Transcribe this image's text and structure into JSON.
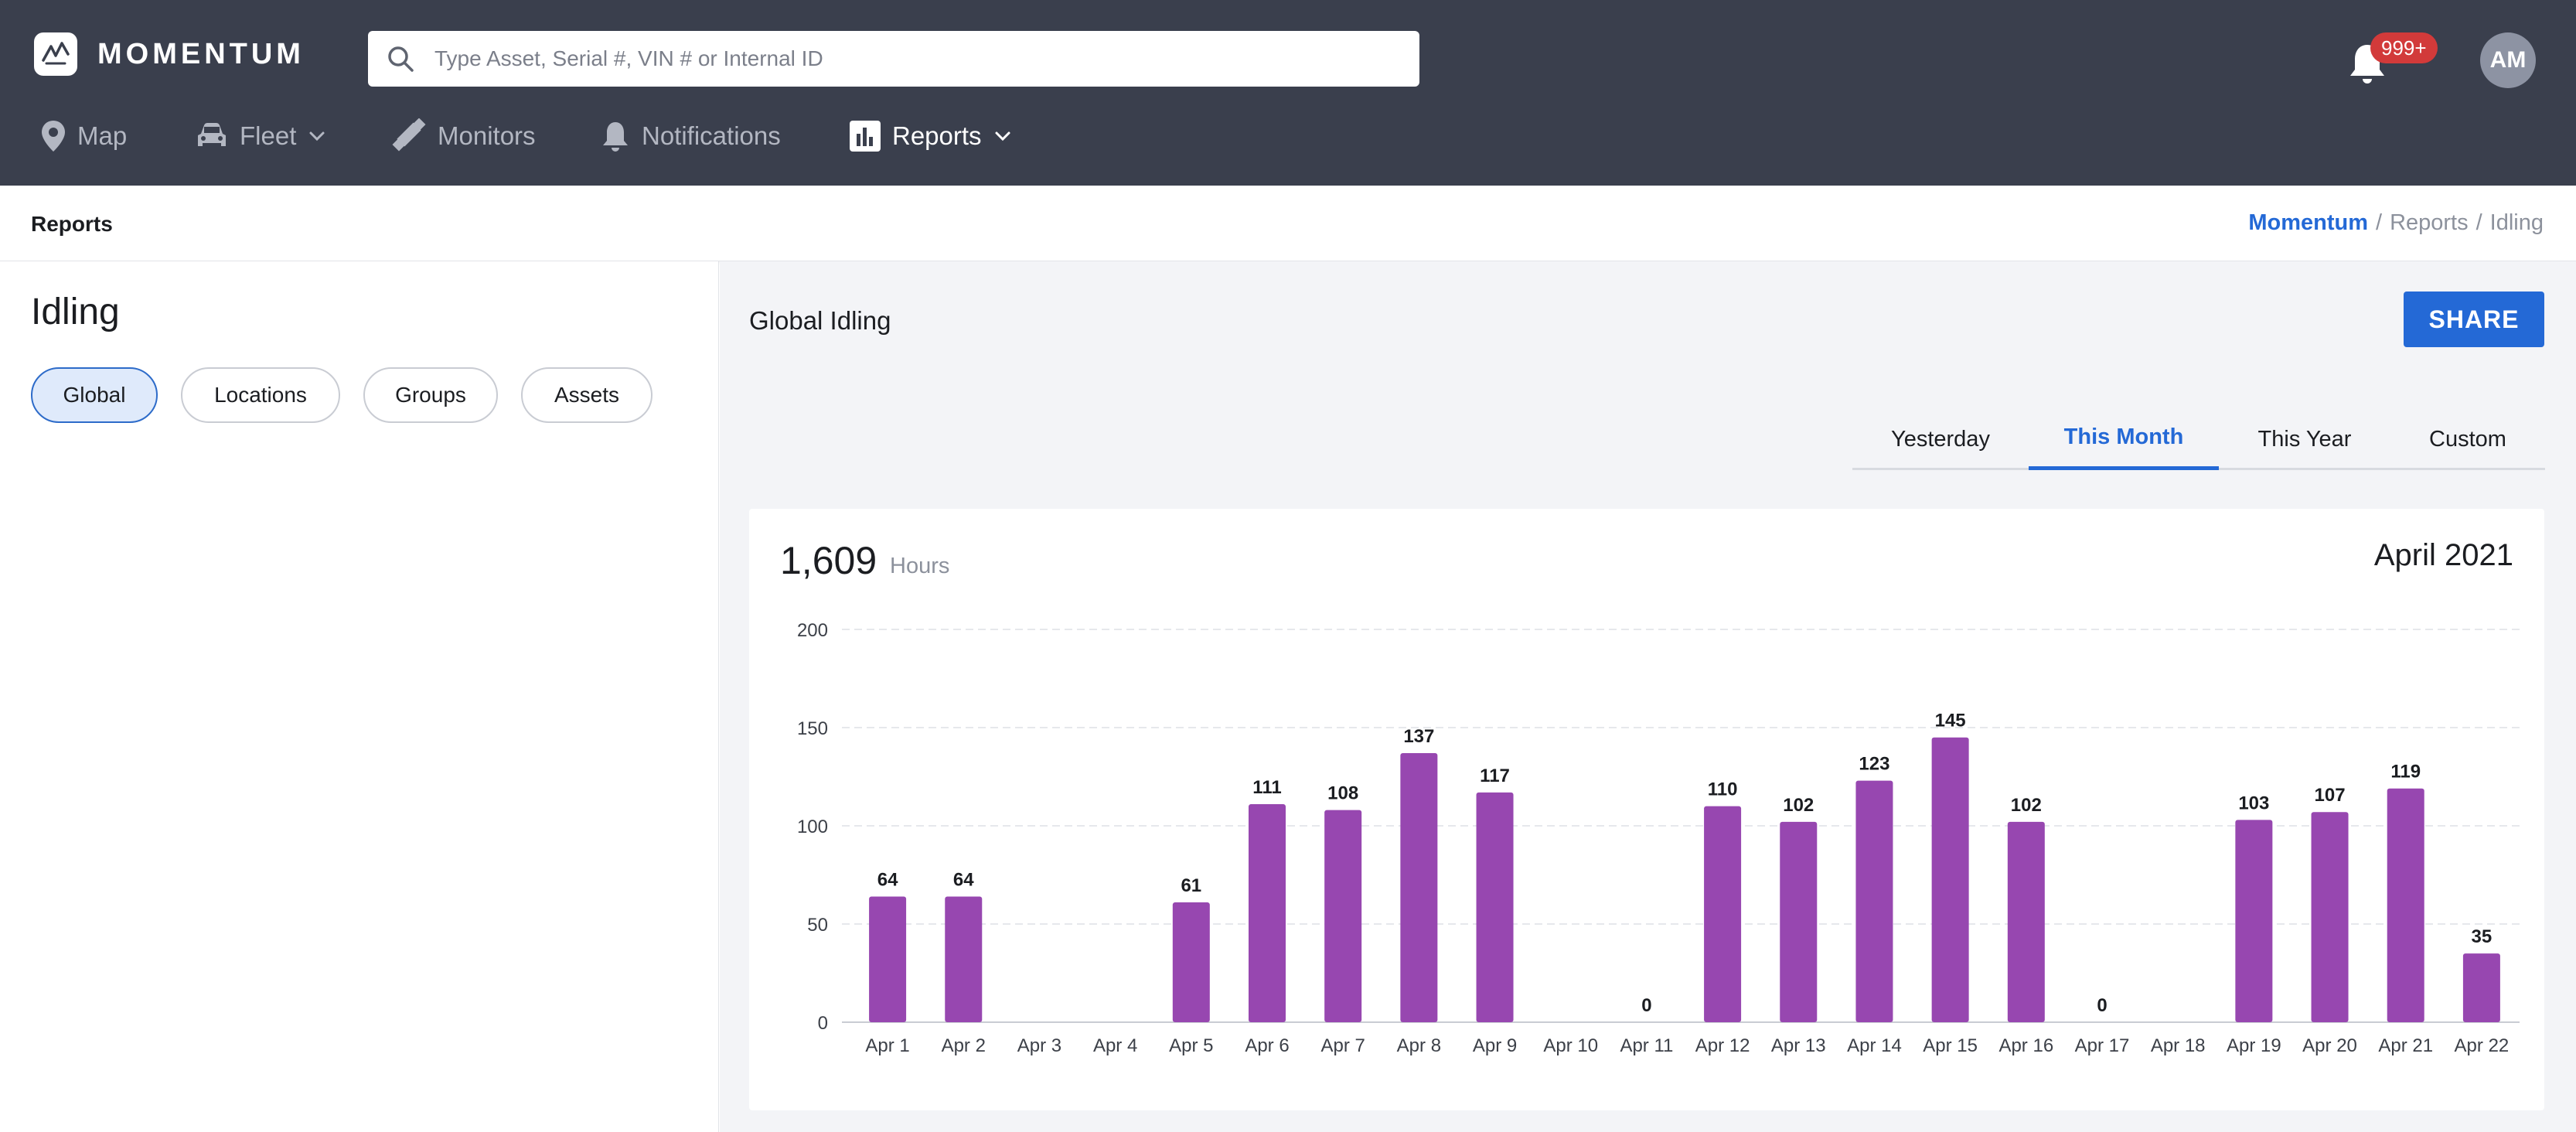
{
  "app": {
    "name": "MOMENTUM",
    "search_placeholder": "Type Asset, Serial #, VIN # or Internal ID",
    "notification_badge": "999+",
    "avatar_initials": "AM"
  },
  "nav": {
    "items": [
      {
        "label": "Map",
        "icon": "map-pin-icon"
      },
      {
        "label": "Fleet",
        "icon": "car-icon"
      },
      {
        "label": "Monitors",
        "icon": "satellite-icon"
      },
      {
        "label": "Notifications",
        "icon": "bell-icon"
      },
      {
        "label": "Reports",
        "icon": "bar-chart-icon"
      }
    ],
    "active": "Reports"
  },
  "subheader": {
    "title": "Reports",
    "breadcrumb": [
      "Momentum",
      "Reports",
      "Idling"
    ],
    "separator": "/"
  },
  "left_panel": {
    "heading": "Idling",
    "filters": [
      "Global",
      "Locations",
      "Groups",
      "Assets"
    ],
    "active_filter": "Global"
  },
  "main": {
    "title": "Global Idling",
    "share_label": "SHARE",
    "tabs": [
      "Yesterday",
      "This Month",
      "This Year",
      "Custom"
    ],
    "active_tab": "This Month",
    "total_value": "1,609",
    "total_unit": "Hours",
    "period": "April 2021"
  },
  "colors": {
    "topbar": "#3a3f4d",
    "accent": "#2469d6",
    "bar": "#9747b0"
  },
  "chart_data": {
    "type": "bar",
    "categories": [
      "Apr 1",
      "Apr 2",
      "Apr 3",
      "Apr 4",
      "Apr 5",
      "Apr 6",
      "Apr 7",
      "Apr 8",
      "Apr 9",
      "Apr 10",
      "Apr 11",
      "Apr 12",
      "Apr 13",
      "Apr 14",
      "Apr 15",
      "Apr 16",
      "Apr 17",
      "Apr 18",
      "Apr 19",
      "Apr 20",
      "Apr 21",
      "Apr 22"
    ],
    "values": [
      64,
      64,
      null,
      null,
      61,
      111,
      108,
      137,
      117,
      null,
      0,
      110,
      102,
      123,
      145,
      102,
      0,
      null,
      103,
      107,
      119,
      35
    ],
    "data_labels": [
      "64",
      "64",
      "",
      "",
      "61",
      "111",
      "108",
      "137",
      "117",
      "",
      "0",
      "110",
      "102",
      "123",
      "145",
      "102",
      "0",
      "",
      "103",
      "107",
      "119",
      "35"
    ],
    "yticks": [
      0,
      50,
      100,
      150,
      200
    ],
    "ylim": [
      0,
      200
    ],
    "grid": true,
    "legend": "none",
    "color": "#9747b0"
  }
}
